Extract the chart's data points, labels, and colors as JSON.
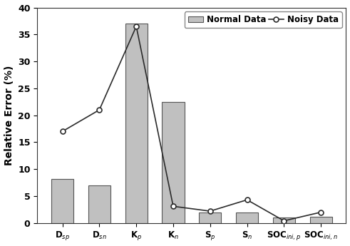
{
  "categories": [
    "D_sp",
    "D_sn",
    "K_p",
    "K_n",
    "S_p",
    "S_n",
    "SOC_ini,p",
    "SOC_ini,n"
  ],
  "bar_values": [
    8.2,
    7.0,
    37.0,
    22.5,
    2.0,
    2.0,
    1.0,
    1.1
  ],
  "line_values": [
    17.0,
    21.0,
    36.5,
    3.1,
    2.2,
    4.3,
    0.4,
    2.0
  ],
  "bar_color": "#c0c0c0",
  "line_color": "#2b2b2b",
  "ylabel": "Relative Error (%)",
  "ylim": [
    0,
    40
  ],
  "yticks": [
    0,
    5,
    10,
    15,
    20,
    25,
    30,
    35,
    40
  ],
  "legend_bar_label": "Normal Data",
  "legend_line_label": "Noisy Data",
  "background_color": "#ffffff",
  "tick_labelsize": 9,
  "ylabel_fontsize": 10
}
